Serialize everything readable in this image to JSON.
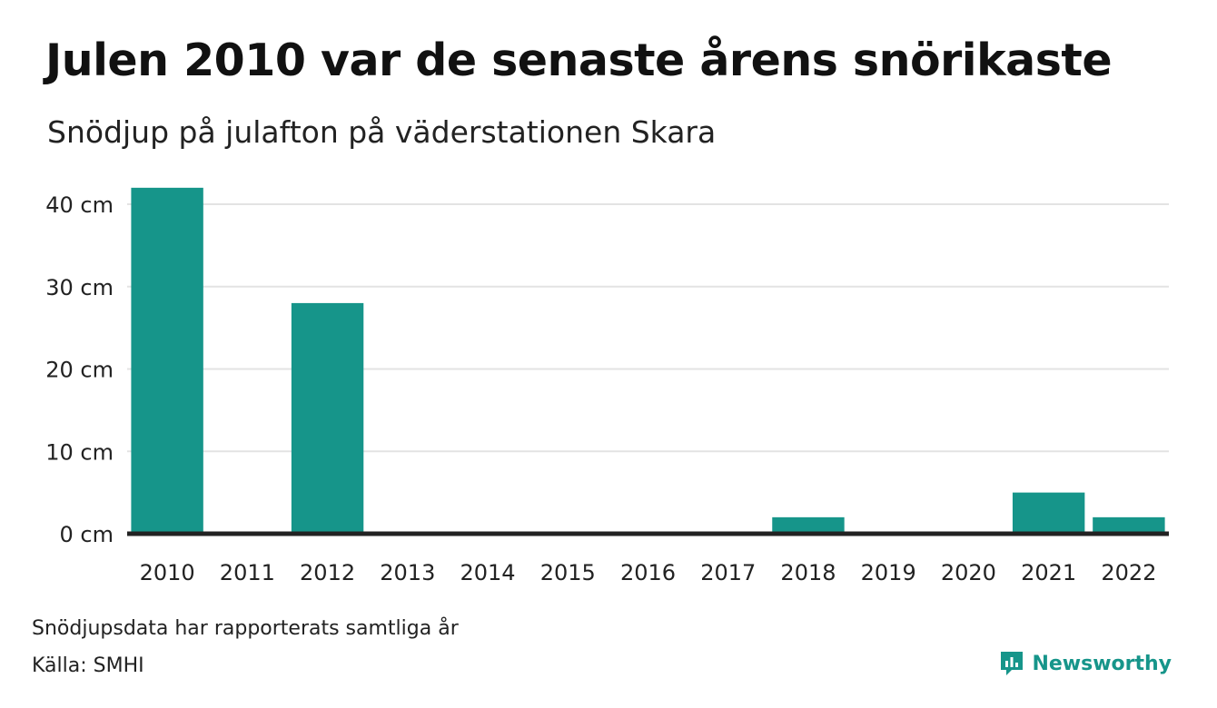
{
  "header": {
    "title": "Julen 2010 var de senaste årens snörikaste",
    "subtitle": "Snödjup på julafton på väderstationen Skara"
  },
  "footer": {
    "note": "Snödjupsdata har rapporterats samtliga år",
    "source": "Källa: SMHI",
    "brand": "Newsworthy"
  },
  "colors": {
    "bar": "#16958a",
    "grid": "#e3e3e3",
    "baseline": "#222222",
    "brand": "#16958a"
  },
  "icons": {
    "brand_logo": "newsworthy-logo-icon"
  },
  "chart_data": {
    "type": "bar",
    "categories": [
      "2010",
      "2011",
      "2012",
      "2013",
      "2014",
      "2015",
      "2016",
      "2017",
      "2018",
      "2019",
      "2020",
      "2021",
      "2022"
    ],
    "values": [
      42,
      0,
      28,
      0,
      0,
      0,
      0,
      0,
      2,
      0,
      0,
      5,
      2
    ],
    "unit": "cm",
    "y_ticks": [
      0,
      10,
      20,
      30,
      40
    ],
    "y_tick_labels": [
      "0 cm",
      "10 cm",
      "20 cm",
      "30 cm",
      "40 cm"
    ],
    "ylim": [
      0,
      42
    ],
    "grid": true,
    "legend": "none"
  }
}
